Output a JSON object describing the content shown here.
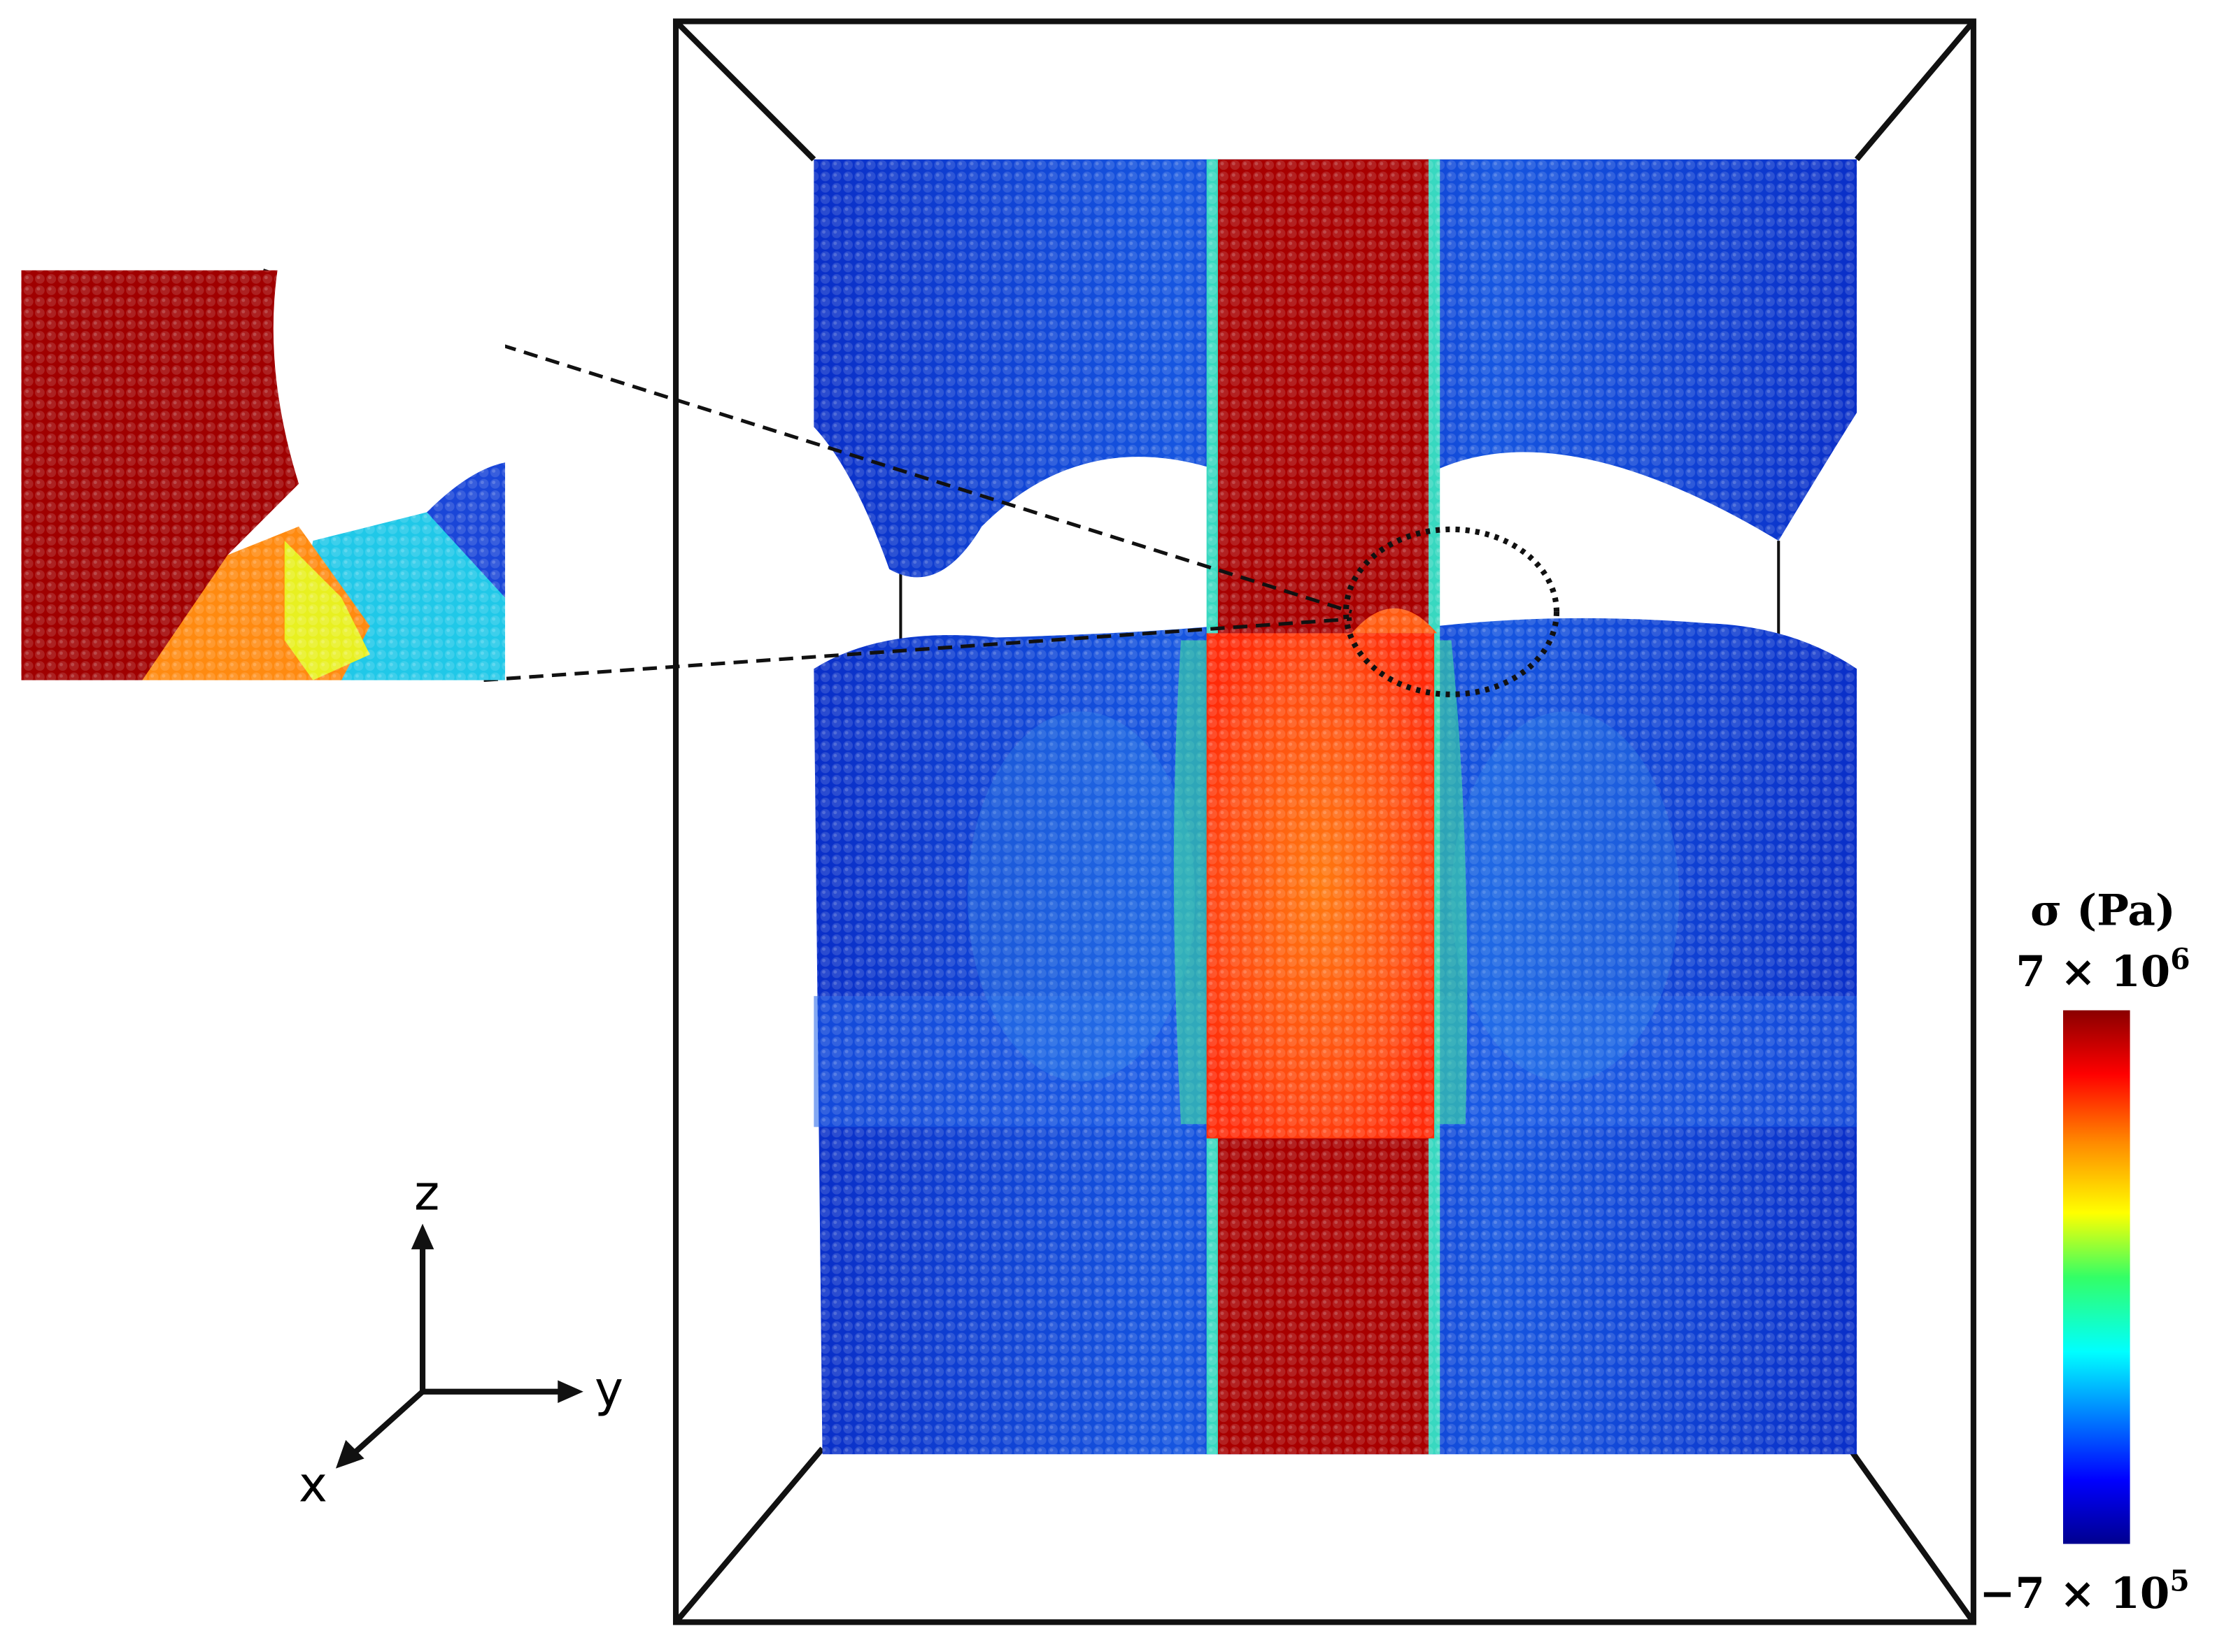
{
  "axes": {
    "z": "z",
    "y": "y",
    "x": "x"
  },
  "colorbar": {
    "title": "σ (Pa)",
    "max": {
      "mantissa": "7 × 10",
      "exponent": "6"
    },
    "min": {
      "mantissa": "−7 × 10",
      "exponent": "5"
    }
  }
}
